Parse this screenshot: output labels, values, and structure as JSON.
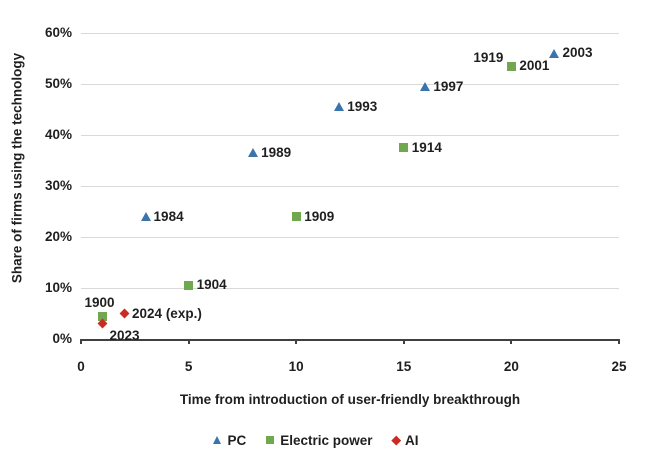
{
  "chart_data": {
    "type": "scatter",
    "title": "",
    "xlabel": "Time from introduction of user-friendly breakthrough",
    "ylabel": "Share of firms using the technology",
    "xlim": [
      0,
      25
    ],
    "ylim": [
      0,
      60
    ],
    "x_ticks": [
      0,
      5,
      10,
      15,
      20,
      25
    ],
    "y_ticks": [
      {
        "value": 0,
        "label": "0%"
      },
      {
        "value": 10,
        "label": "10%"
      },
      {
        "value": 20,
        "label": "20%"
      },
      {
        "value": 30,
        "label": "30%"
      },
      {
        "value": 40,
        "label": "40%"
      },
      {
        "value": 50,
        "label": "50%"
      },
      {
        "value": 60,
        "label": "60%"
      }
    ],
    "grid": "horizontal-only",
    "legend_position": "bottom-center",
    "colors": {
      "gridline": "#d9d9d9",
      "axis": "#404040",
      "text": "#1f1f1f"
    },
    "series": [
      {
        "name": "PC",
        "marker": "triangle",
        "color": "#3a74ac",
        "points": [
          {
            "x": 3,
            "y": 24,
            "label": "1984"
          },
          {
            "x": 8,
            "y": 36.5,
            "label": "1989"
          },
          {
            "x": 12,
            "y": 45.5,
            "label": "1993"
          },
          {
            "x": 16,
            "y": 49.5,
            "label": "1997"
          },
          {
            "x": 20,
            "y": 53.5,
            "label": "2001",
            "marker_hidden": true
          },
          {
            "x": 22,
            "y": 56,
            "label": "2003"
          }
        ]
      },
      {
        "name": "Electric power",
        "marker": "square",
        "color": "#6fa84f",
        "points": [
          {
            "x": 1,
            "y": 4.5,
            "label": "1900",
            "side": "free",
            "dx": -18,
            "dy": -21
          },
          {
            "x": 5,
            "y": 10.5,
            "label": "1904"
          },
          {
            "x": 10,
            "y": 24,
            "label": "1909"
          },
          {
            "x": 15,
            "y": 37.5,
            "label": "1914"
          },
          {
            "x": 20,
            "y": 53.5,
            "label": "1919",
            "side": "left",
            "dy": -8
          }
        ]
      },
      {
        "name": "AI",
        "marker": "diamond",
        "color": "#cc2a25",
        "points": [
          {
            "x": 1,
            "y": 3,
            "label": "2023",
            "side": "free",
            "dx": 7,
            "dy": 4
          },
          {
            "x": 2,
            "y": 5,
            "label": "2024 (exp.)"
          }
        ]
      }
    ]
  }
}
